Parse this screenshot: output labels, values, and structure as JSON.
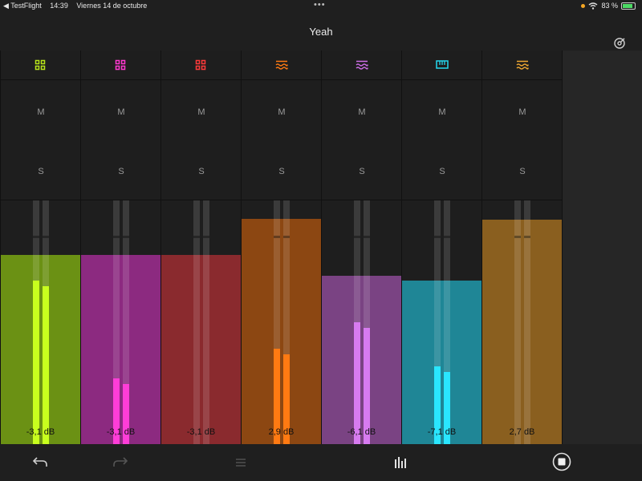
{
  "status_bar": {
    "back_app": "◀ TestFlight",
    "time": "14:39",
    "date": "Viernes 14 de octubre",
    "battery": "83 %",
    "dots": "•••"
  },
  "header": {
    "title": "Yeah",
    "settings_icon": "tuner-icon"
  },
  "channels": [
    {
      "icon": "grid-icon",
      "icon_color": "#b7e31a",
      "mute": "M",
      "solo": "S",
      "fader_level": 0.775,
      "meter_level": 0.67,
      "fill_color": "#6b9114",
      "meter_color": "#c8ff1e",
      "db": "-3,1 dB"
    },
    {
      "icon": "grid-icon",
      "icon_color": "#ff39d0",
      "mute": "M",
      "solo": "S",
      "fader_level": 0.775,
      "meter_level": 0.27,
      "fill_color": "#8c2a80",
      "meter_color": "#ff3dd8",
      "db": "-3,1 dB"
    },
    {
      "icon": "grid-icon",
      "icon_color": "#ff3a3a",
      "mute": "M",
      "solo": "S",
      "fader_level": 0.775,
      "meter_level": 0.0,
      "fill_color": "#8a2a2e",
      "meter_color": "#ff3a3a",
      "db": "-3,1 dB"
    },
    {
      "icon": "wave-icon",
      "icon_color": "#ff7a12",
      "mute": "M",
      "solo": "S",
      "fader_level": 0.925,
      "meter_level": 0.39,
      "fill_color": "#8c4712",
      "meter_color": "#ff7a12",
      "db": "2,9 dB"
    },
    {
      "icon": "wave-icon",
      "icon_color": "#cf6ee8",
      "mute": "M",
      "solo": "S",
      "fader_level": 0.69,
      "meter_level": 0.5,
      "fill_color": "#7a4383",
      "meter_color": "#d77bf0",
      "db": "-6,1 dB"
    },
    {
      "icon": "keyboard-icon",
      "icon_color": "#24d8ef",
      "mute": "M",
      "solo": "S",
      "fader_level": 0.67,
      "meter_level": 0.32,
      "fill_color": "#1f8696",
      "meter_color": "#2ae6ff",
      "db": "-7,1 dB"
    },
    {
      "icon": "wave-icon",
      "icon_color": "#f0a832",
      "mute": "M",
      "solo": "S",
      "fader_level": 0.92,
      "meter_level": 0.0,
      "fill_color": "#8a5f1f",
      "meter_color": "#f0a832",
      "db": "2,7 dB"
    }
  ],
  "bottom_bar": {
    "undo": "undo-icon",
    "redo": "redo-icon",
    "piano_roll": "piano-roll-icon",
    "mixer": "mixer-icon",
    "stop": "stop-icon"
  }
}
